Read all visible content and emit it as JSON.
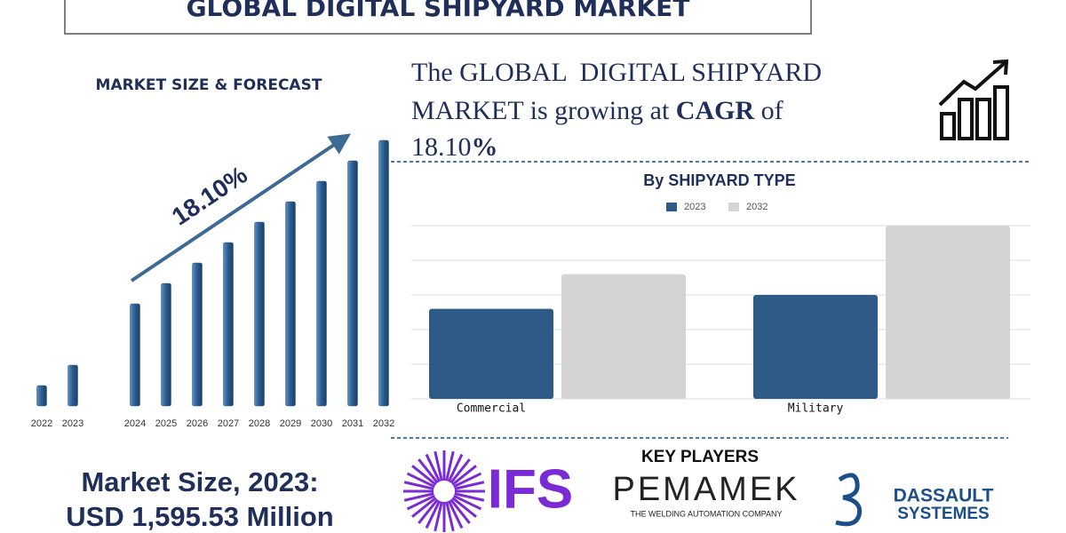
{
  "header": {
    "title": "GLOBAL DIGITAL SHIPYARD MARKET"
  },
  "chart_data": [
    {
      "type": "bar",
      "title": "MARKET SIZE & FORECAST",
      "categories": [
        "2022",
        "2023",
        null,
        "2024",
        "2025",
        "2026",
        "2027",
        "2028",
        "2029",
        "2030",
        "2031",
        "2032"
      ],
      "values": [
        23,
        46,
        null,
        115,
        138,
        161,
        184,
        207,
        230,
        253,
        276,
        299
      ],
      "color": "#2b5a8c",
      "ylim": [
        0,
        300
      ],
      "annotation": "18.10%"
    },
    {
      "type": "bar",
      "title": "By SHIPYARD TYPE",
      "categories": [
        "Commercial",
        "Military"
      ],
      "series": [
        {
          "name": "2023",
          "color": "#2e5a88",
          "values": [
            2.6,
            3.0
          ]
        },
        {
          "name": "2032",
          "color": "#d4d4d4",
          "values": [
            3.6,
            5.0
          ]
        }
      ],
      "ylim": [
        0,
        5
      ],
      "yticks": [
        0,
        1,
        2,
        3,
        4,
        5
      ],
      "grid": true,
      "legend": "top"
    }
  ],
  "cagr": {
    "line1": "The GLOBAL  DIGITAL SHIPYARD",
    "line2": "MARKET is growing at ",
    "cagr_label": "CAGR",
    "line2_end": " of",
    "value": "18.10",
    "percent": "%"
  },
  "market_size": {
    "label": "Market Size, 2023:",
    "value": "USD 1,595.53 Million"
  },
  "key_players": {
    "title": "KEY PLAYERS",
    "players": [
      {
        "name": "IFS"
      },
      {
        "name": "PEMAMEK",
        "tagline": "THE WELDING AUTOMATION COMPANY"
      },
      {
        "name": "DASSAULT",
        "line2": "SYSTEMES"
      }
    ]
  }
}
